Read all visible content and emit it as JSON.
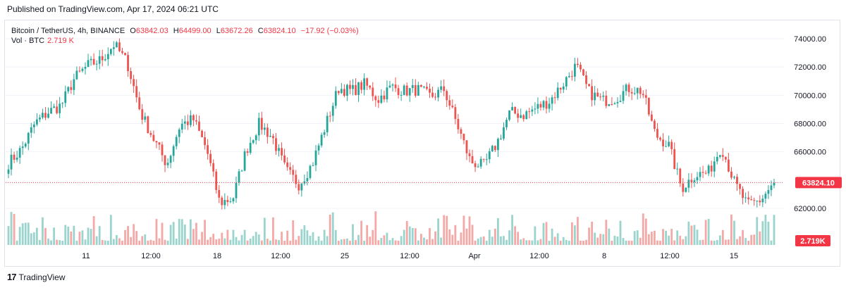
{
  "header": {
    "published": "Published on TradingView.com, Apr 17, 2024 06:21 UTC"
  },
  "legend": {
    "symbol": "Bitcoin / TetherUS, 4h, BINANCE",
    "o_label": "O",
    "o_value": "63842.03",
    "h_label": "H",
    "h_value": "64499.00",
    "l_label": "L",
    "l_value": "63672.26",
    "c_label": "C",
    "c_value": "63824.10",
    "change": "−17.92 (−0.03%)",
    "vol_label": "Vol · BTC",
    "vol_value": "2.719 K"
  },
  "footer": {
    "logo": "17",
    "brand": "TradingView"
  },
  "colors": {
    "up": "#26a69a",
    "down": "#ef5350",
    "up_vol": "#9bd4cd",
    "down_vol": "#f4a9a7",
    "last_price": "#f23645"
  },
  "chart_data": {
    "type": "candlestick",
    "x_ticks": [
      "11",
      "12:00",
      "18",
      "12:00",
      "25",
      "12:00",
      "Apr",
      "12:00",
      "8",
      "12:00",
      "15"
    ],
    "y_ticks": [
      "74000.00",
      "72000.00",
      "70000.00",
      "68000.00",
      "66000.00",
      "62000.00"
    ],
    "ylim": [
      61000,
      75000
    ],
    "last_price_label": "63824.10",
    "last_volume_label": "2.719K",
    "anchor_closes": [
      65200,
      66200,
      68000,
      68800,
      69300,
      71200,
      72100,
      72500,
      73600,
      72300,
      68800,
      66900,
      65100,
      67900,
      68300,
      66200,
      62400,
      62700,
      66100,
      68000,
      67000,
      64700,
      63700,
      65100,
      67800,
      70500,
      70300,
      70800,
      69700,
      70600,
      70300,
      70400,
      69900,
      70400,
      67900,
      65300,
      65000,
      66600,
      68800,
      68600,
      69100,
      69600,
      70800,
      72100,
      70200,
      69600,
      69800,
      70500,
      70300,
      67200,
      66500,
      63400,
      64400,
      64500,
      66400,
      63800,
      62200,
      62600,
      63824
    ]
  }
}
